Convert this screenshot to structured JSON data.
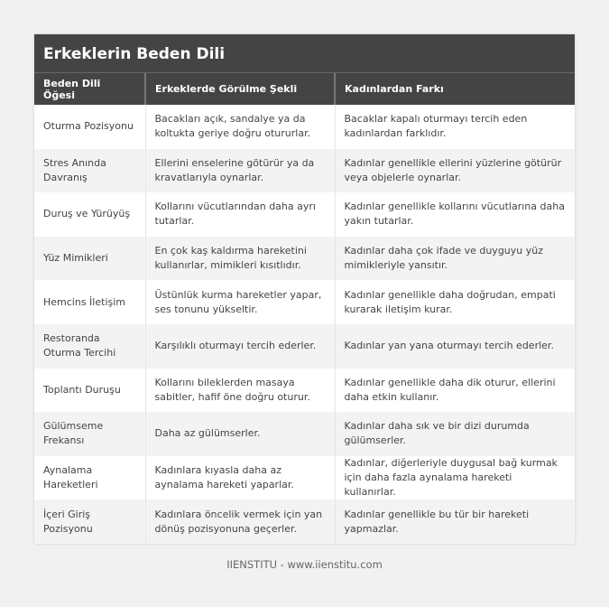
{
  "title": "Erkeklerin Beden Dili",
  "headers": [
    "Beden Dili Öğesi",
    "Erkeklerde Görülme Şekli",
    "Kadınlardan Farkı"
  ],
  "rows": [
    [
      "Oturma Pozisyonu",
      "Bacakları açık, sandalye ya da koltukta geriye doğru otururlar.",
      "Bacaklar kapalı oturmayı tercih eden kadınlardan farklıdır."
    ],
    [
      "Stres Anında Davranış",
      "Ellerini enselerine götürür ya da kravatlarıyla oynarlar.",
      "Kadınlar genellikle ellerini yüzlerine götürür veya objelerle oynarlar."
    ],
    [
      "Duruş ve Yürüyüş",
      "Kollarını vücutlarından daha ayrı tutarlar.",
      "Kadınlar genellikle kollarını vücutlarına daha yakın tutarlar."
    ],
    [
      "Yüz Mimikleri",
      "En çok kaş kaldırma hareketini kullanırlar, mimikleri kısıtlıdır.",
      "Kadınlar daha çok ifade ve duyguyu yüz mimikleriyle yansıtır."
    ],
    [
      "Hemcins İletişim",
      "Üstünlük kurma hareketler yapar, ses tonunu yükseltir.",
      "Kadınlar genellikle daha doğrudan, empati kurarak iletişim kurar."
    ],
    [
      "Restoranda Oturma Tercihi",
      "Karşılıklı oturmayı tercih ederler.",
      "Kadınlar yan yana oturmayı tercih ederler."
    ],
    [
      "Toplantı Duruşu",
      "Kollarını bileklerden masaya sabitler, hafif öne doğru oturur.",
      "Kadınlar genellikle daha dik oturur, ellerini daha etkin kullanır."
    ],
    [
      "Gülümseme Frekansı",
      "Daha az gülümserler.",
      "Kadınlar daha sık ve bir dizi durumda gülümserler."
    ],
    [
      "Aynalama Hareketleri",
      "Kadınlara kıyasla daha az aynalama hareketi yaparlar.",
      "Kadınlar, diğerleriyle duygusal bağ kurmak için daha fazla aynalama hareketi kullanırlar."
    ],
    [
      "İçeri Giriş Pozisyonu",
      "Kadınlara öncelik vermek için yan dönüş pozisyonuna geçerler.",
      "Kadınlar genellikle bu tür bir hareketi yapmazlar."
    ]
  ],
  "footer": "IIENSTITU - www.iienstitu.com"
}
